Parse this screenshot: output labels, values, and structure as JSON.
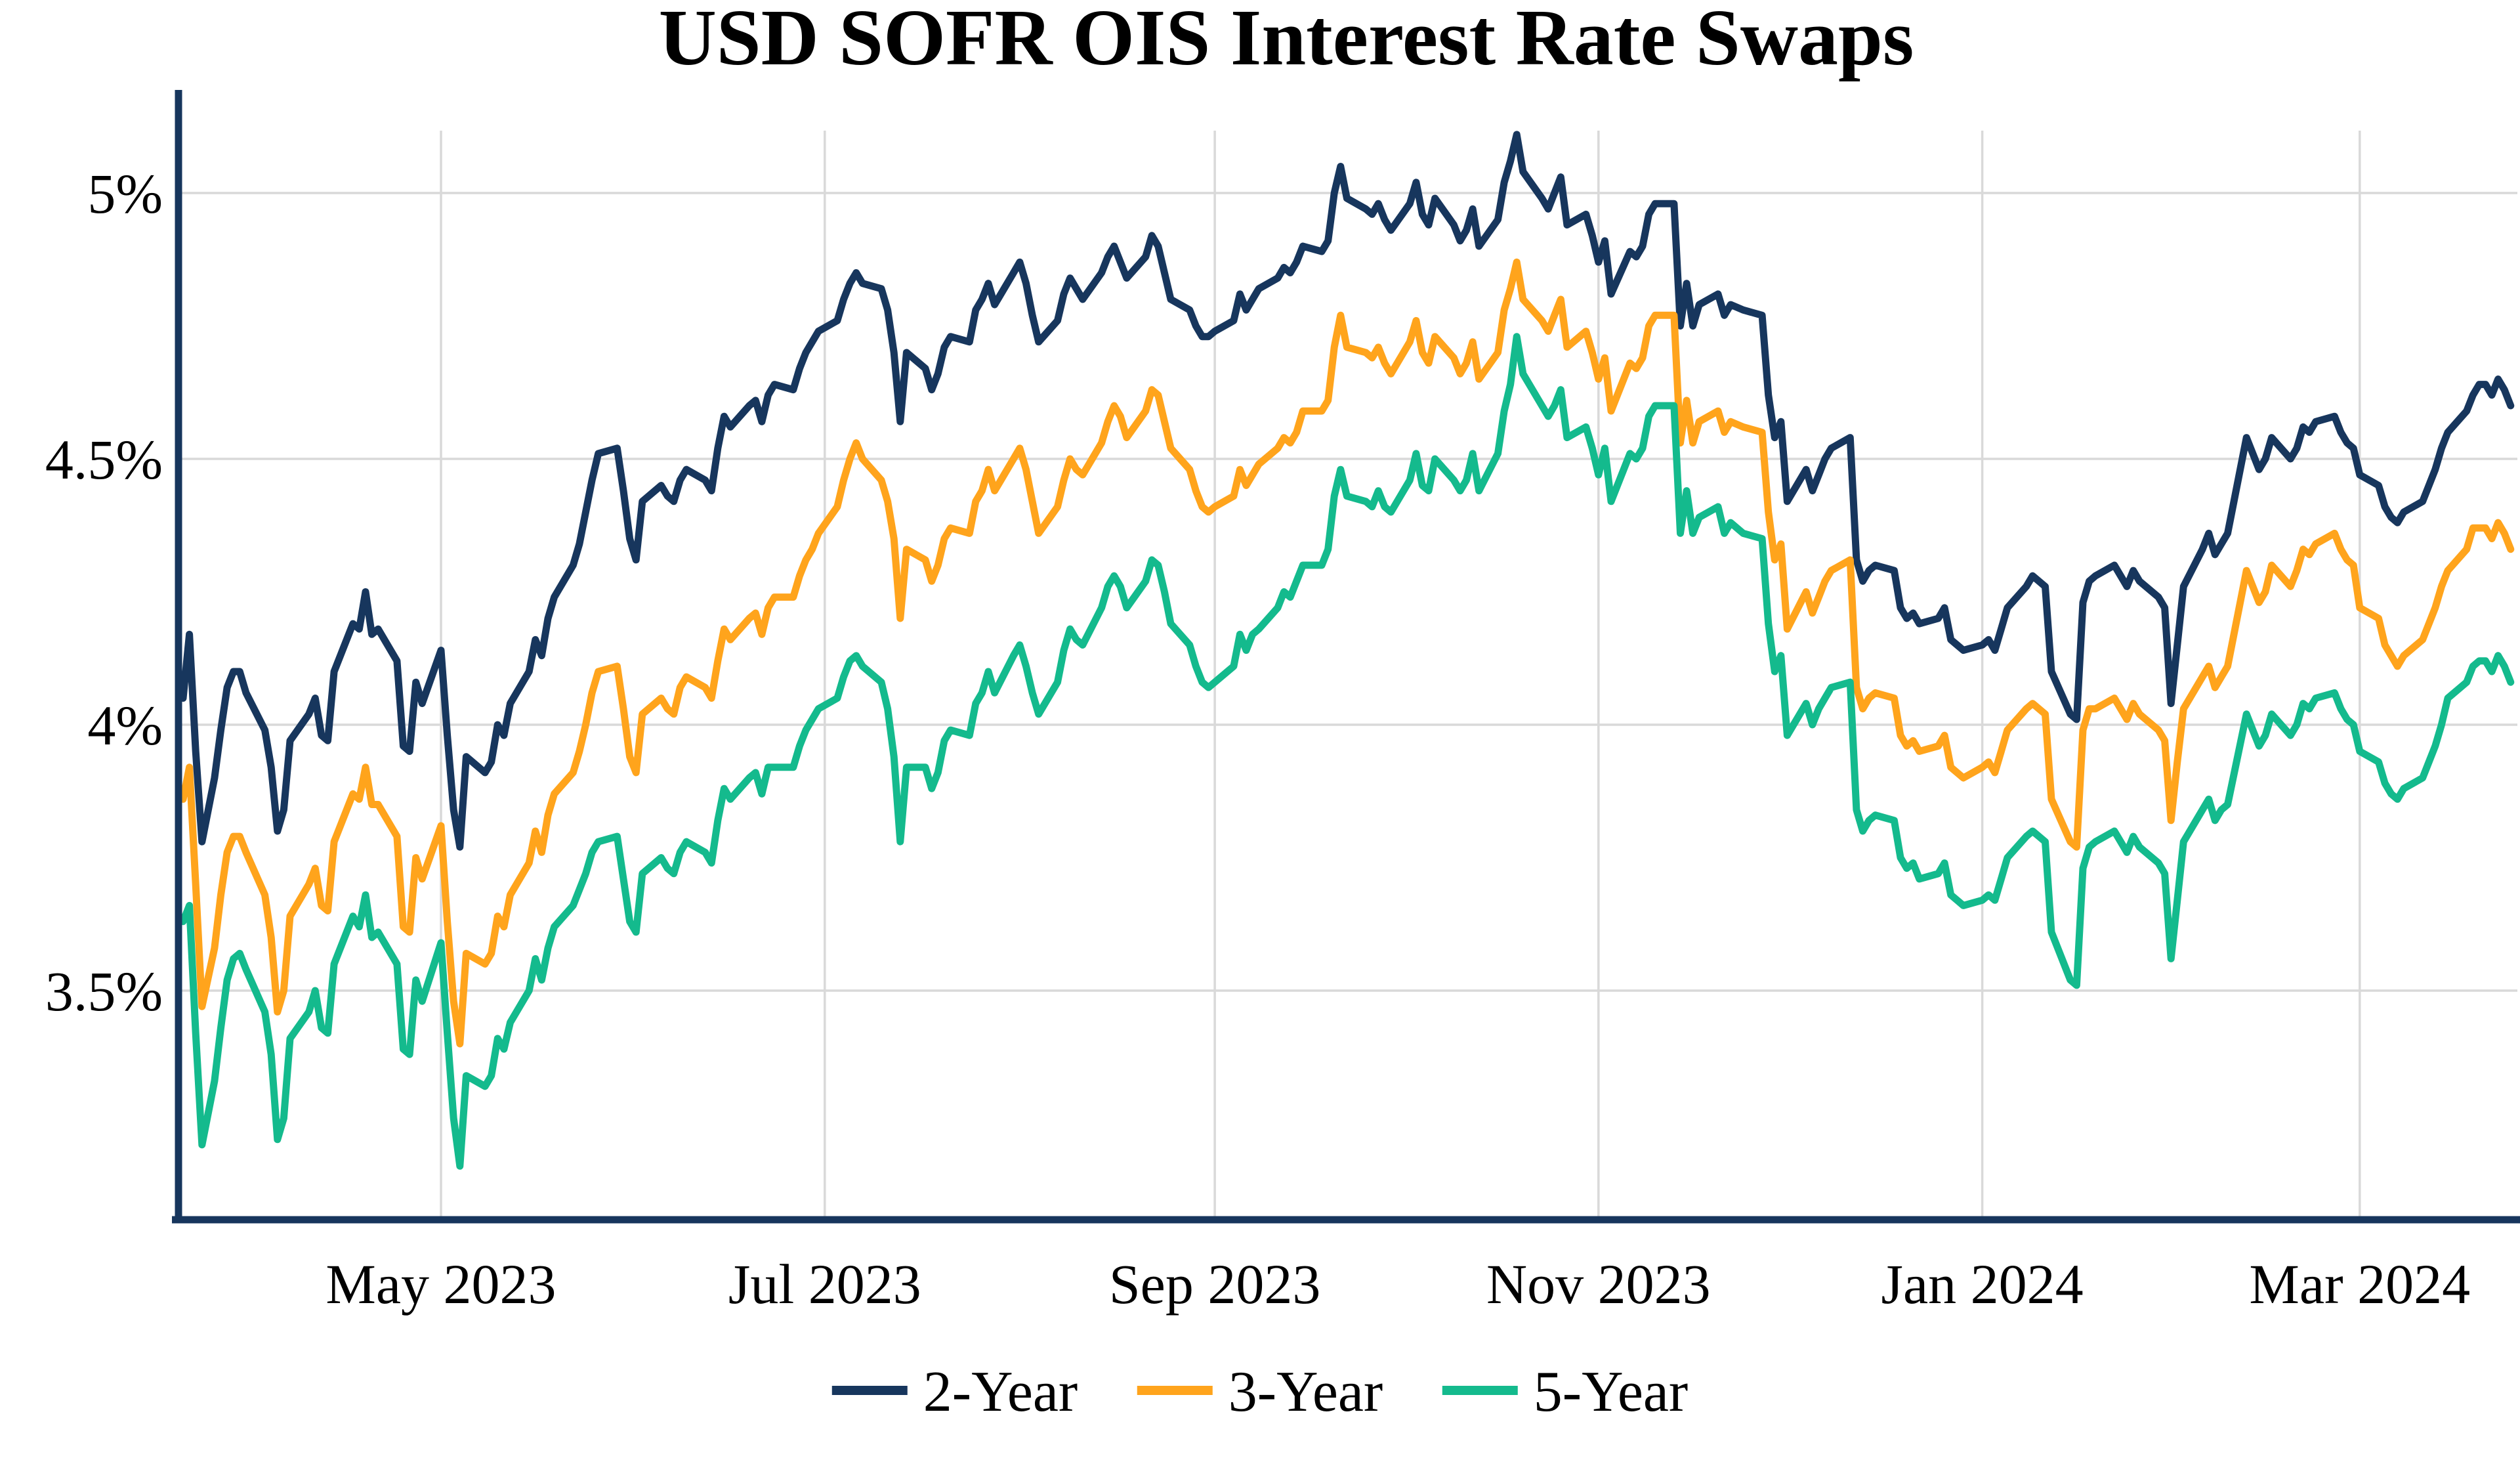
{
  "page": {
    "background": "#FFFFFF"
  },
  "chart_data": {
    "type": "line",
    "title": "USD SOFR OIS Interest Rate Swaps",
    "xlabel": "",
    "ylabel": "",
    "grid": true,
    "legend_position": "bottom-center",
    "axis_color": "#17365D",
    "gridline_color": "#D9D9D9",
    "y_domain": [
      3.07,
      5.118
    ],
    "x_domain_days": [
      -1,
      371
    ],
    "x_unit": "business-day index across the span Mar 2023 - Mar 2024",
    "y_ticks": [
      {
        "label": "5%",
        "value": 5.0
      },
      {
        "label": "4.5%",
        "value": 4.5
      },
      {
        "label": "4%",
        "value": 4.0
      },
      {
        "label": "3.5%",
        "value": 3.5
      }
    ],
    "x_ticks": [
      {
        "label": "May 2023",
        "day": 41
      },
      {
        "label": "Jul 2023",
        "day": 102
      },
      {
        "label": "Sep 2023",
        "day": 164
      },
      {
        "label": "Nov 2023",
        "day": 225
      },
      {
        "label": "Jan 2024",
        "day": 286
      },
      {
        "label": "Mar 2024",
        "day": 346
      }
    ],
    "days": [
      0,
      1,
      2,
      3,
      5,
      6,
      7,
      8,
      9,
      10,
      13,
      14,
      15,
      16,
      17,
      20,
      21,
      22,
      23,
      24,
      27,
      28,
      29,
      30,
      31,
      34,
      35,
      36,
      37,
      38,
      41,
      42,
      43,
      44,
      45,
      48,
      49,
      50,
      51,
      52,
      55,
      56,
      57,
      58,
      59,
      62,
      63,
      64,
      65,
      66,
      69,
      70,
      71,
      72,
      73,
      76,
      77,
      78,
      79,
      80,
      83,
      84,
      85,
      86,
      87,
      90,
      91,
      92,
      93,
      94,
      97,
      98,
      99,
      100,
      101,
      104,
      105,
      106,
      107,
      108,
      111,
      112,
      113,
      114,
      115,
      118,
      119,
      120,
      121,
      122,
      125,
      126,
      127,
      128,
      129,
      132,
      133,
      134,
      135,
      136,
      139,
      140,
      141,
      142,
      143,
      146,
      147,
      148,
      149,
      150,
      153,
      154,
      155,
      156,
      157,
      160,
      161,
      162,
      163,
      164,
      167,
      168,
      169,
      170,
      171,
      174,
      175,
      176,
      177,
      178,
      181,
      182,
      183,
      184,
      185,
      188,
      189,
      190,
      191,
      192,
      195,
      196,
      197,
      198,
      199,
      202,
      203,
      204,
      205,
      206,
      209,
      210,
      211,
      212,
      213,
      216,
      217,
      218,
      219,
      220,
      223,
      224,
      225,
      226,
      227,
      230,
      231,
      232,
      233,
      234,
      237,
      238,
      239,
      240,
      241,
      244,
      245,
      246,
      248,
      251,
      252,
      253,
      254,
      255,
      258,
      259,
      260,
      261,
      262,
      265,
      266,
      267,
      268,
      269,
      272,
      273,
      274,
      275,
      276,
      279,
      280,
      281,
      282,
      283,
      286,
      287,
      288,
      289,
      290,
      293,
      294,
      295,
      296,
      297,
      300,
      301,
      302,
      303,
      304,
      307,
      308,
      309,
      310,
      311,
      314,
      315,
      316,
      317,
      318,
      321,
      322,
      323,
      324,
      325,
      328,
      329,
      330,
      331,
      332,
      335,
      336,
      337,
      338,
      339,
      342,
      343,
      344,
      345,
      346,
      349,
      350,
      351,
      352,
      353,
      356,
      357,
      358,
      359,
      360,
      363,
      364,
      365,
      366,
      367,
      368,
      369,
      370
    ],
    "series": [
      {
        "name": "2-Year",
        "color": "#17365D",
        "values": [
          4.05,
          4.17,
          3.95,
          3.78,
          3.9,
          3.99,
          4.07,
          4.1,
          4.1,
          4.06,
          3.99,
          3.92,
          3.8,
          3.84,
          3.97,
          4.02,
          4.05,
          3.98,
          3.97,
          4.1,
          4.19,
          4.18,
          4.25,
          4.17,
          4.18,
          4.12,
          3.96,
          3.95,
          4.08,
          4.04,
          4.14,
          3.98,
          3.84,
          3.77,
          3.94,
          3.91,
          3.93,
          4.0,
          3.98,
          4.04,
          4.1,
          4.16,
          4.13,
          4.2,
          4.24,
          4.3,
          4.34,
          4.4,
          4.46,
          4.51,
          4.52,
          4.44,
          4.35,
          4.31,
          4.42,
          4.45,
          4.43,
          4.42,
          4.46,
          4.48,
          4.46,
          4.44,
          4.52,
          4.58,
          4.56,
          4.6,
          4.61,
          4.57,
          4.62,
          4.64,
          4.63,
          4.67,
          4.7,
          4.72,
          4.74,
          4.76,
          4.8,
          4.83,
          4.85,
          4.83,
          4.82,
          4.78,
          4.7,
          4.57,
          4.7,
          4.67,
          4.63,
          4.66,
          4.71,
          4.73,
          4.72,
          4.78,
          4.8,
          4.83,
          4.79,
          4.85,
          4.87,
          4.83,
          4.77,
          4.72,
          4.76,
          4.81,
          4.84,
          4.82,
          4.8,
          4.85,
          4.88,
          4.9,
          4.87,
          4.84,
          4.88,
          4.92,
          4.9,
          4.85,
          4.8,
          4.78,
          4.75,
          4.73,
          4.73,
          4.74,
          4.76,
          4.81,
          4.78,
          4.8,
          4.82,
          4.84,
          4.86,
          4.85,
          4.87,
          4.9,
          4.89,
          4.91,
          5.0,
          5.05,
          4.99,
          4.97,
          4.96,
          4.98,
          4.95,
          4.93,
          4.98,
          5.02,
          4.96,
          4.94,
          4.99,
          4.94,
          4.91,
          4.93,
          4.97,
          4.9,
          4.95,
          5.02,
          5.06,
          5.11,
          5.04,
          4.99,
          4.97,
          5.0,
          5.03,
          4.94,
          4.96,
          4.92,
          4.87,
          4.91,
          4.81,
          4.89,
          4.88,
          4.9,
          4.96,
          4.98,
          4.98,
          4.75,
          4.83,
          4.75,
          4.79,
          4.81,
          4.77,
          4.79,
          4.78,
          4.77,
          4.62,
          4.54,
          4.57,
          4.42,
          4.48,
          4.44,
          4.47,
          4.5,
          4.52,
          4.54,
          4.31,
          4.27,
          4.29,
          4.3,
          4.29,
          4.22,
          4.2,
          4.21,
          4.19,
          4.2,
          4.22,
          4.16,
          4.15,
          4.14,
          4.15,
          4.16,
          4.14,
          4.18,
          4.22,
          4.26,
          4.28,
          4.27,
          4.26,
          4.1,
          4.02,
          4.01,
          4.23,
          4.27,
          4.28,
          4.3,
          4.28,
          4.26,
          4.29,
          4.27,
          4.24,
          4.22,
          4.04,
          4.15,
          4.26,
          4.33,
          4.36,
          4.32,
          4.34,
          4.36,
          4.54,
          4.51,
          4.48,
          4.5,
          4.54,
          4.5,
          4.52,
          4.56,
          4.55,
          4.57,
          4.58,
          4.55,
          4.53,
          4.52,
          4.47,
          4.45,
          4.41,
          4.39,
          4.38,
          4.4,
          4.42,
          4.45,
          4.48,
          4.52,
          4.55,
          4.59,
          4.62,
          4.64,
          4.64,
          4.62,
          4.65,
          4.63,
          4.6
        ]
      },
      {
        "name": "3-Year",
        "color": "#FFA41C",
        "values": [
          3.86,
          3.92,
          3.7,
          3.47,
          3.58,
          3.68,
          3.76,
          3.79,
          3.79,
          3.76,
          3.68,
          3.6,
          3.46,
          3.5,
          3.64,
          3.7,
          3.73,
          3.66,
          3.65,
          3.78,
          3.87,
          3.86,
          3.92,
          3.85,
          3.85,
          3.79,
          3.62,
          3.61,
          3.75,
          3.71,
          3.81,
          3.63,
          3.48,
          3.4,
          3.57,
          3.55,
          3.57,
          3.64,
          3.62,
          3.68,
          3.74,
          3.8,
          3.76,
          3.83,
          3.87,
          3.91,
          3.95,
          4.0,
          4.06,
          4.1,
          4.11,
          4.03,
          3.94,
          3.91,
          4.02,
          4.05,
          4.03,
          4.02,
          4.07,
          4.09,
          4.07,
          4.05,
          4.12,
          4.18,
          4.16,
          4.2,
          4.21,
          4.17,
          4.22,
          4.24,
          4.24,
          4.28,
          4.31,
          4.33,
          4.36,
          4.41,
          4.46,
          4.5,
          4.53,
          4.5,
          4.46,
          4.42,
          4.35,
          4.2,
          4.33,
          4.31,
          4.27,
          4.3,
          4.35,
          4.37,
          4.36,
          4.42,
          4.44,
          4.48,
          4.44,
          4.5,
          4.52,
          4.48,
          4.42,
          4.36,
          4.41,
          4.46,
          4.5,
          4.48,
          4.47,
          4.53,
          4.57,
          4.6,
          4.58,
          4.54,
          4.59,
          4.63,
          4.62,
          4.57,
          4.52,
          4.48,
          4.44,
          4.41,
          4.4,
          4.41,
          4.43,
          4.48,
          4.45,
          4.47,
          4.49,
          4.52,
          4.54,
          4.53,
          4.55,
          4.59,
          4.59,
          4.61,
          4.71,
          4.77,
          4.71,
          4.7,
          4.69,
          4.71,
          4.68,
          4.66,
          4.72,
          4.76,
          4.7,
          4.68,
          4.73,
          4.69,
          4.66,
          4.68,
          4.72,
          4.65,
          4.7,
          4.78,
          4.82,
          4.87,
          4.8,
          4.76,
          4.74,
          4.77,
          4.8,
          4.71,
          4.74,
          4.7,
          4.65,
          4.69,
          4.59,
          4.68,
          4.67,
          4.69,
          4.75,
          4.77,
          4.77,
          4.53,
          4.61,
          4.53,
          4.57,
          4.59,
          4.55,
          4.57,
          4.56,
          4.55,
          4.4,
          4.31,
          4.34,
          4.18,
          4.25,
          4.21,
          4.24,
          4.27,
          4.29,
          4.31,
          4.07,
          4.03,
          4.05,
          4.06,
          4.05,
          3.98,
          3.96,
          3.97,
          3.95,
          3.96,
          3.98,
          3.92,
          3.91,
          3.9,
          3.92,
          3.93,
          3.91,
          3.95,
          3.99,
          4.03,
          4.04,
          4.03,
          4.02,
          3.86,
          3.78,
          3.77,
          3.99,
          4.03,
          4.03,
          4.05,
          4.03,
          4.01,
          4.04,
          4.02,
          3.99,
          3.97,
          3.82,
          3.93,
          4.03,
          4.09,
          4.11,
          4.07,
          4.09,
          4.11,
          4.29,
          4.26,
          4.23,
          4.25,
          4.3,
          4.26,
          4.29,
          4.33,
          4.32,
          4.34,
          4.36,
          4.33,
          4.31,
          4.3,
          4.22,
          4.2,
          4.15,
          4.13,
          4.11,
          4.13,
          4.16,
          4.19,
          4.22,
          4.26,
          4.29,
          4.33,
          4.37,
          4.37,
          4.37,
          4.35,
          4.38,
          4.36,
          4.33
        ]
      },
      {
        "name": "5-Year",
        "color": "#14BA8D",
        "values": [
          3.63,
          3.66,
          3.42,
          3.21,
          3.33,
          3.43,
          3.52,
          3.56,
          3.57,
          3.54,
          3.46,
          3.38,
          3.22,
          3.26,
          3.41,
          3.46,
          3.5,
          3.43,
          3.42,
          3.55,
          3.64,
          3.62,
          3.68,
          3.6,
          3.61,
          3.55,
          3.39,
          3.38,
          3.52,
          3.48,
          3.59,
          3.42,
          3.26,
          3.17,
          3.34,
          3.32,
          3.34,
          3.41,
          3.39,
          3.44,
          3.5,
          3.56,
          3.52,
          3.58,
          3.62,
          3.66,
          3.69,
          3.72,
          3.76,
          3.78,
          3.79,
          3.71,
          3.63,
          3.61,
          3.72,
          3.75,
          3.73,
          3.72,
          3.76,
          3.78,
          3.76,
          3.74,
          3.82,
          3.88,
          3.86,
          3.9,
          3.91,
          3.87,
          3.92,
          3.92,
          3.92,
          3.96,
          3.99,
          4.01,
          4.03,
          4.05,
          4.09,
          4.12,
          4.13,
          4.11,
          4.08,
          4.03,
          3.94,
          3.78,
          3.92,
          3.92,
          3.88,
          3.91,
          3.97,
          3.99,
          3.98,
          4.04,
          4.06,
          4.1,
          4.06,
          4.13,
          4.15,
          4.11,
          4.06,
          4.02,
          4.08,
          4.14,
          4.18,
          4.16,
          4.15,
          4.22,
          4.26,
          4.28,
          4.26,
          4.22,
          4.27,
          4.31,
          4.3,
          4.25,
          4.19,
          4.15,
          4.11,
          4.08,
          4.07,
          4.08,
          4.11,
          4.17,
          4.14,
          4.17,
          4.18,
          4.22,
          4.25,
          4.24,
          4.27,
          4.3,
          4.3,
          4.33,
          4.43,
          4.48,
          4.43,
          4.42,
          4.41,
          4.44,
          4.41,
          4.4,
          4.46,
          4.51,
          4.45,
          4.44,
          4.5,
          4.46,
          4.44,
          4.46,
          4.51,
          4.44,
          4.51,
          4.59,
          4.64,
          4.73,
          4.66,
          4.6,
          4.58,
          4.6,
          4.63,
          4.54,
          4.56,
          4.52,
          4.47,
          4.52,
          4.42,
          4.51,
          4.5,
          4.52,
          4.58,
          4.6,
          4.6,
          4.36,
          4.44,
          4.36,
          4.39,
          4.41,
          4.36,
          4.38,
          4.36,
          4.35,
          4.19,
          4.1,
          4.13,
          3.98,
          4.04,
          4.0,
          4.03,
          4.05,
          4.07,
          4.08,
          3.84,
          3.8,
          3.82,
          3.83,
          3.82,
          3.75,
          3.73,
          3.74,
          3.71,
          3.72,
          3.74,
          3.68,
          3.67,
          3.66,
          3.67,
          3.68,
          3.67,
          3.71,
          3.75,
          3.79,
          3.8,
          3.79,
          3.78,
          3.61,
          3.52,
          3.51,
          3.73,
          3.77,
          3.78,
          3.8,
          3.78,
          3.76,
          3.79,
          3.77,
          3.74,
          3.72,
          3.56,
          3.67,
          3.78,
          3.84,
          3.86,
          3.82,
          3.84,
          3.85,
          4.02,
          3.99,
          3.96,
          3.98,
          4.02,
          3.98,
          4.0,
          4.04,
          4.03,
          4.05,
          4.06,
          4.03,
          4.01,
          4.0,
          3.95,
          3.93,
          3.89,
          3.87,
          3.86,
          3.88,
          3.9,
          3.93,
          3.96,
          4.0,
          4.05,
          4.08,
          4.11,
          4.12,
          4.12,
          4.1,
          4.13,
          4.11,
          4.08
        ]
      }
    ],
    "legend": [
      {
        "label": "2-Year",
        "color": "#17365D"
      },
      {
        "label": "3-Year",
        "color": "#FFA41C"
      },
      {
        "label": "5-Year",
        "color": "#14BA8D"
      }
    ]
  }
}
